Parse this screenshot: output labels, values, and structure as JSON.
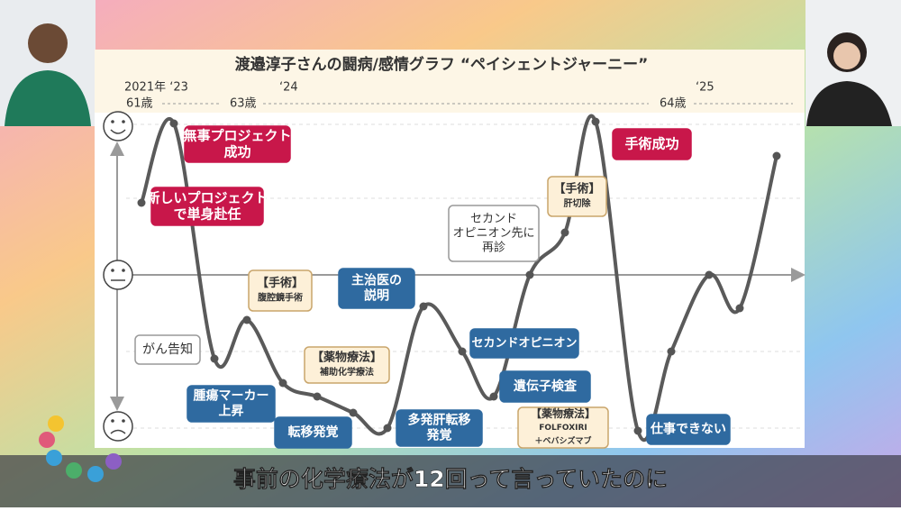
{
  "slide": {
    "title": "渡邉淳子さんの闘病/感情グラフ “ペイシェントジャーニー”",
    "timeline": [
      "2021年 ‘23",
      "‘24",
      "‘25",
      "61歳",
      "63歳",
      "64歳"
    ],
    "events": [
      {
        "lines": [
          "無事プロジェクト",
          "成功"
        ]
      },
      {
        "lines": [
          "新しいプロジェクト",
          "で単身赴任"
        ]
      },
      {
        "lines": [
          "【手術】",
          "腹腔鏡手術"
        ]
      },
      {
        "lines": [
          "がん告知"
        ]
      },
      {
        "lines": [
          "【薬物療法】",
          "補助化学療法"
        ]
      },
      {
        "lines": [
          "腫瘍マーカー",
          "上昇"
        ]
      },
      {
        "lines": [
          "転移発覚"
        ]
      },
      {
        "lines": [
          "主治医の",
          "説明"
        ]
      },
      {
        "lines": [
          "多発肝転移",
          "発覚"
        ]
      },
      {
        "lines": [
          "セカンドオピニオン"
        ]
      },
      {
        "lines": [
          "セカンド",
          "オピニオン先に",
          "再診"
        ]
      },
      {
        "lines": [
          "【手術】",
          "肝切除"
        ]
      },
      {
        "lines": [
          "遺伝子検査"
        ]
      },
      {
        "lines": [
          "【薬物療法】",
          "FOLFOXIRI",
          "＋ベバシズマブ"
        ]
      },
      {
        "lines": [
          "手術成功"
        ]
      },
      {
        "lines": [
          "仕事できない"
        ]
      }
    ]
  },
  "caption": "事前の化学療法が12回って言っていたのに"
}
